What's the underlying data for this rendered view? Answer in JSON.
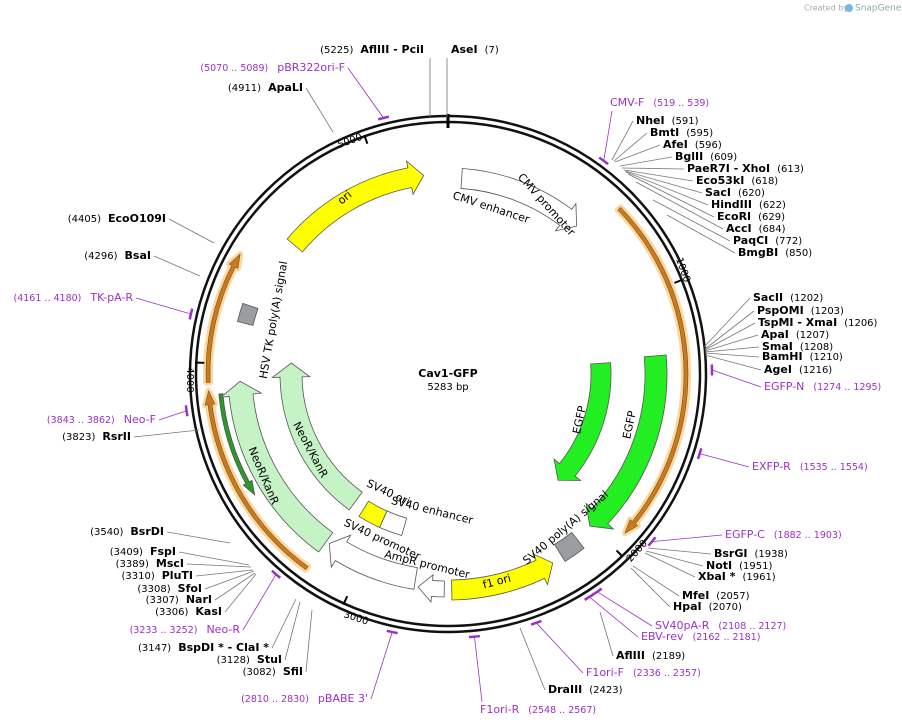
{
  "header": {
    "credit": "Created by",
    "brand": "SnapGene"
  },
  "plasmid": {
    "name": "Cav1-GFP",
    "size": "5283 bp"
  },
  "ruler": [
    "1000",
    "2000",
    "3000",
    "4000",
    "5000"
  ],
  "features": [
    "ori",
    "CMV enhancer",
    "CMV promoter",
    "EGFP",
    "EGFP",
    "SV40 poly(A) signal",
    "f1 ori",
    "AmpR promoter",
    "SV40 promoter",
    "SV40 ori",
    "SV40 enhancer",
    "NeoR/KanR",
    "NeoR/KanR",
    "HSV TK poly(A) signal"
  ],
  "sites": [
    {
      "name": "AflIII  - PciI",
      "position": "(5225)"
    },
    {
      "name": "AseI",
      "position": "(7)"
    },
    {
      "name": "NheI",
      "position": "(591)"
    },
    {
      "name": "BmtI",
      "position": "(595)"
    },
    {
      "name": "AfeI",
      "position": "(596)"
    },
    {
      "name": "BglII",
      "position": "(609)"
    },
    {
      "name": "PaeR7I  - XhoI",
      "position": "(613)"
    },
    {
      "name": "Eco53kI",
      "position": "(618)"
    },
    {
      "name": "SacI",
      "position": "(620)"
    },
    {
      "name": "HindIII",
      "position": "(622)"
    },
    {
      "name": "EcoRI",
      "position": "(629)"
    },
    {
      "name": "AccI",
      "position": "(684)"
    },
    {
      "name": "PaqCI",
      "position": "(772)"
    },
    {
      "name": "BmgBI",
      "position": "(850)"
    },
    {
      "name": "SacII",
      "position": "(1202)"
    },
    {
      "name": "PspOMI",
      "position": "(1203)"
    },
    {
      "name": "TspMI  - XmaI",
      "position": "(1206)"
    },
    {
      "name": "ApaI",
      "position": "(1207)"
    },
    {
      "name": "SmaI",
      "position": "(1208)"
    },
    {
      "name": "BamHI",
      "position": "(1210)"
    },
    {
      "name": "AgeI",
      "position": "(1216)"
    },
    {
      "name": "BsrGI",
      "position": "(1938)"
    },
    {
      "name": "NotI",
      "position": "(1951)"
    },
    {
      "name": "XbaI *",
      "position": "(1961)"
    },
    {
      "name": "MfeI",
      "position": "(2057)"
    },
    {
      "name": "HpaI",
      "position": "(2070)"
    },
    {
      "name": "AflIII",
      "position": "(2189)"
    },
    {
      "name": "DraIII",
      "position": "(2423)"
    },
    {
      "name": "SfiI",
      "position": "(3082)"
    },
    {
      "name": "StuI",
      "position": "(3128)"
    },
    {
      "name": "BspDI *  - ClaI *",
      "position": "(3147)"
    },
    {
      "name": "KasI",
      "position": "(3306)"
    },
    {
      "name": "NarI",
      "position": "(3307)"
    },
    {
      "name": "SfoI",
      "position": "(3308)"
    },
    {
      "name": "PluTI",
      "position": "(3310)"
    },
    {
      "name": "MscI",
      "position": "(3389)"
    },
    {
      "name": "FspI",
      "position": "(3409)"
    },
    {
      "name": "BsrDI",
      "position": "(3540)"
    },
    {
      "name": "RsrII",
      "position": "(3823)"
    },
    {
      "name": "BsaI",
      "position": "(4296)"
    },
    {
      "name": "EcoO109I",
      "position": "(4405)"
    },
    {
      "name": "ApaLI",
      "position": "(4911)"
    }
  ],
  "primers": [
    {
      "name": "pBR322ori-F",
      "range": "(5070 .. 5089)"
    },
    {
      "name": "CMV-F",
      "range": "(519 .. 539)"
    },
    {
      "name": "EGFP-N",
      "range": "(1274 .. 1295)"
    },
    {
      "name": "EXFP-R",
      "range": "(1535 .. 1554)"
    },
    {
      "name": "EGFP-C",
      "range": "(1882 .. 1903)"
    },
    {
      "name": "SV40pA-R",
      "range": "(2108 .. 2127)"
    },
    {
      "name": "EBV-rev",
      "range": "(2162 .. 2181)"
    },
    {
      "name": "F1ori-F",
      "range": "(2336 .. 2357)"
    },
    {
      "name": "F1ori-R",
      "range": "(2548 .. 2567)"
    },
    {
      "name": "pBABE 3'",
      "range": "(2810 .. 2830)"
    },
    {
      "name": "Neo-R",
      "range": "(3233 .. 3252)"
    },
    {
      "name": "Neo-F",
      "range": "(3843 .. 3862)"
    },
    {
      "name": "TK-pA-R",
      "range": "(4161 .. 4180)"
    }
  ]
}
